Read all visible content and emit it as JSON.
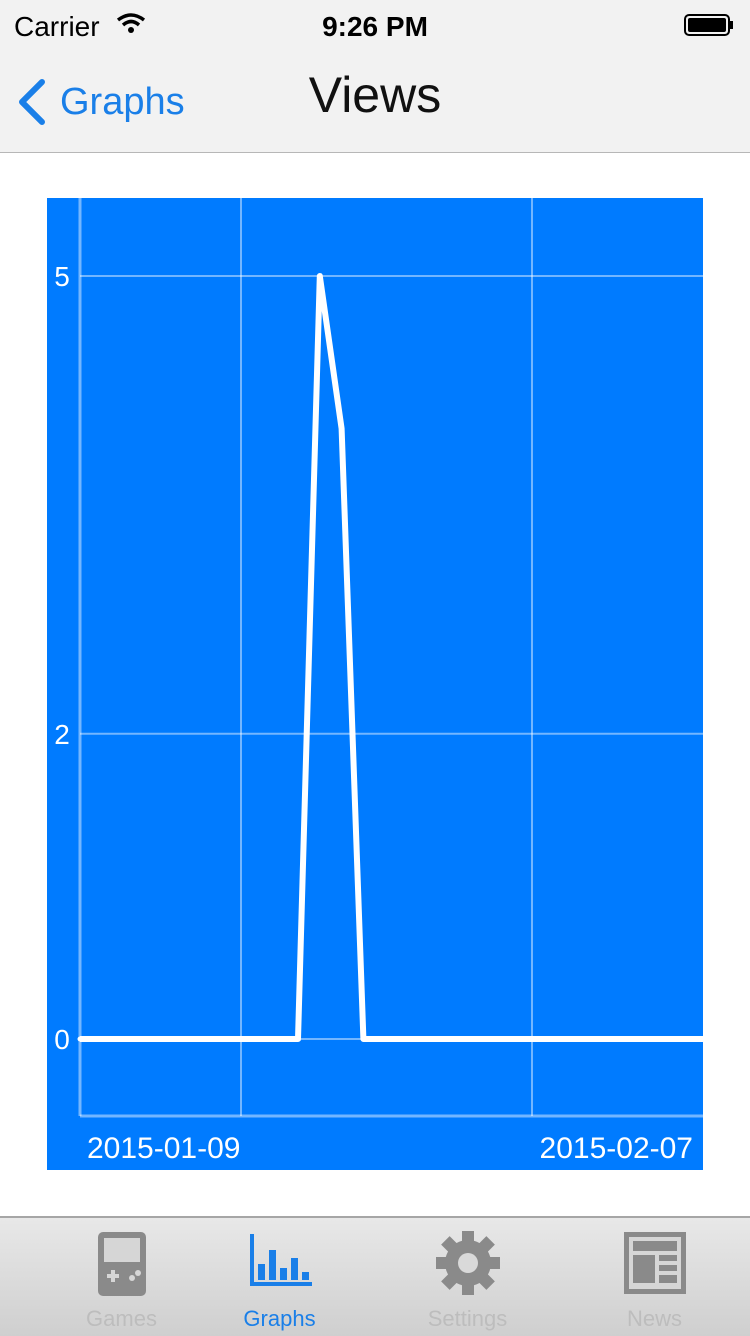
{
  "status_bar": {
    "carrier": "Carrier",
    "time": "9:26 PM"
  },
  "nav": {
    "back_label": "Graphs",
    "title": "Views"
  },
  "colors": {
    "accent": "#1a7fe8",
    "chart_bg": "#007bff",
    "line": "#ffffff",
    "tab_inactive": "#8a8a8a"
  },
  "chart_data": {
    "type": "line",
    "x": [
      "2015-01-09",
      "2015-01-10",
      "2015-01-11",
      "2015-01-12",
      "2015-01-13",
      "2015-01-14",
      "2015-01-15",
      "2015-01-16",
      "2015-01-17",
      "2015-01-18",
      "2015-01-19",
      "2015-01-20",
      "2015-01-21",
      "2015-01-22",
      "2015-01-23",
      "2015-01-24",
      "2015-01-25",
      "2015-01-26",
      "2015-01-27",
      "2015-01-28",
      "2015-01-29",
      "2015-01-30",
      "2015-01-31",
      "2015-02-01",
      "2015-02-02",
      "2015-02-03",
      "2015-02-04",
      "2015-02-05",
      "2015-02-06",
      "2015-02-07"
    ],
    "values": [
      0,
      0,
      0,
      0,
      0,
      0,
      0,
      0,
      0,
      0,
      0,
      5,
      4,
      0,
      0,
      0,
      0,
      0,
      0,
      0,
      0,
      0,
      0,
      0,
      0,
      0,
      0,
      0,
      0,
      0
    ],
    "ylim": [
      -1,
      6
    ],
    "yticks": [
      "5",
      "2",
      "0"
    ],
    "ytick_values": [
      5,
      2,
      0
    ],
    "xtick_labels": [
      "2015-01-09",
      "2015-02-07"
    ],
    "grid": true
  },
  "tabs": [
    {
      "label": "Games",
      "icon": "gameboy-icon",
      "active": false
    },
    {
      "label": "Graphs",
      "icon": "bar-chart-icon",
      "active": true
    },
    {
      "label": "Settings",
      "icon": "gear-icon",
      "active": false
    },
    {
      "label": "News",
      "icon": "newspaper-icon",
      "active": false
    }
  ]
}
